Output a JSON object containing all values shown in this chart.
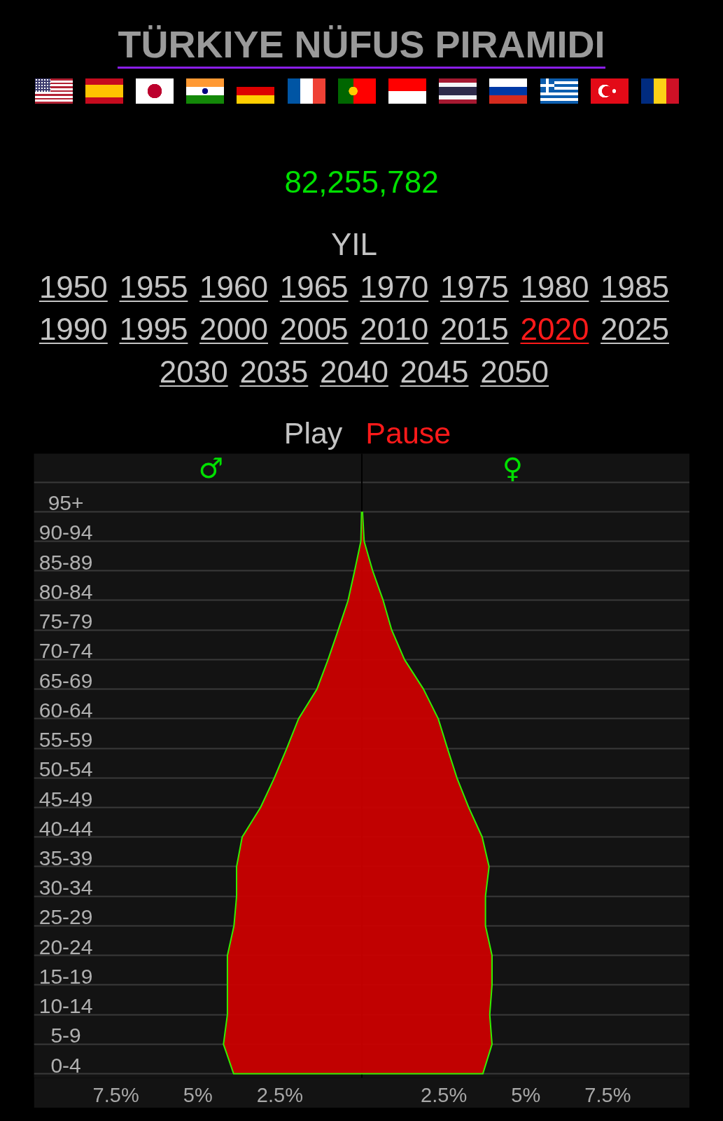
{
  "chart_data": {
    "type": "area",
    "title": "TÜRKIYE NÜFUS PIRAMIDI",
    "subtitle": "82,255,782",
    "annotations": [
      "YIL",
      "1950",
      "1955",
      "1960",
      "1965",
      "1970",
      "1975",
      "1980",
      "1985",
      "1990",
      "1995",
      "2000",
      "2005",
      "2010",
      "2015",
      "2020",
      "2025",
      "2030",
      "2035",
      "2040",
      "2045",
      "2050",
      "Play",
      "Pause",
      "♂",
      "♀"
    ],
    "orientation": "horizontal",
    "categories": [
      "95+",
      "90-94",
      "85-89",
      "80-84",
      "75-79",
      "70-74",
      "65-69",
      "60-64",
      "55-59",
      "50-54",
      "45-49",
      "40-44",
      "35-39",
      "30-34",
      "25-29",
      "20-24",
      "15-19",
      "10-14",
      "5-9",
      "0-4"
    ],
    "series": [
      {
        "color": "#cc0000",
        "values": [
          -0.01,
          -0.03,
          -0.22,
          -0.42,
          -0.72,
          -1.03,
          -1.37,
          -1.93,
          -2.29,
          -2.67,
          -3.09,
          -3.65,
          -3.82,
          -3.82,
          -3.9,
          -4.1,
          -4.1,
          -4.1,
          -4.22,
          -3.91
        ]
      },
      {
        "color": "#cc0000",
        "values": [
          0.02,
          0.07,
          0.33,
          0.65,
          0.91,
          1.3,
          1.88,
          2.33,
          2.61,
          2.9,
          3.26,
          3.67,
          3.88,
          3.77,
          3.77,
          3.97,
          3.97,
          3.9,
          3.97,
          3.69
        ]
      }
    ],
    "xlim": [
      -10,
      10
    ],
    "xticks": [
      {
        "value": -7.5,
        "label": "7.5%"
      },
      {
        "value": -5,
        "label": "5%"
      },
      {
        "value": -2.5,
        "label": "2.5%"
      },
      {
        "value": 2.5,
        "label": "2.5%"
      },
      {
        "value": 5,
        "label": "5%"
      },
      {
        "value": 7.5,
        "label": "7.5%"
      }
    ],
    "grid": "y",
    "ref_lines": [
      {
        "axis": "x",
        "value": 0,
        "color": "#000000"
      }
    ]
  }
}
